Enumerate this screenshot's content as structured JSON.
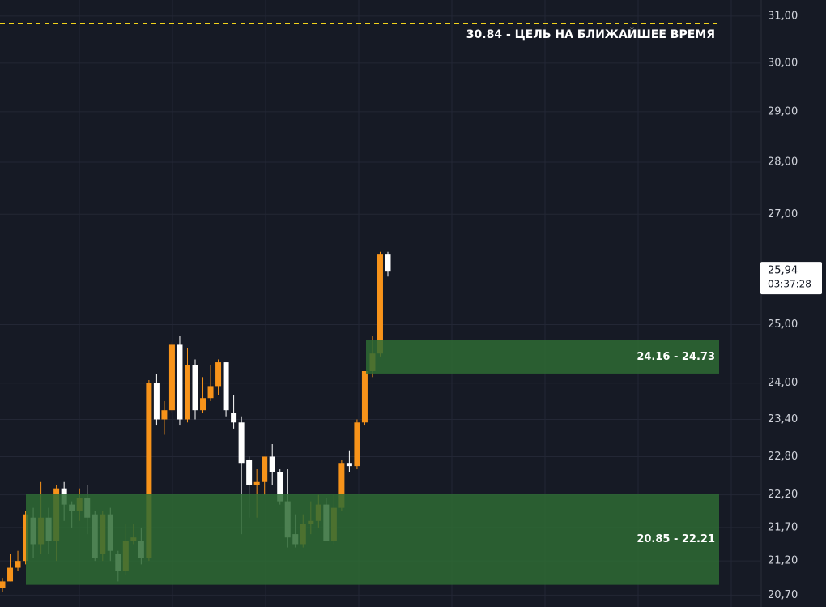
{
  "chart_data": {
    "type": "candlestick",
    "log_scale": true,
    "ylim": [
      20.53,
      31.35
    ],
    "yticks": [
      {
        "value": 31,
        "label": "31,00"
      },
      {
        "value": 30,
        "label": "30,00"
      },
      {
        "value": 29,
        "label": "29,00"
      },
      {
        "value": 28,
        "label": "28,00"
      },
      {
        "value": 27,
        "label": "27,00"
      },
      {
        "value": 25,
        "label": "25,00"
      },
      {
        "value": 24,
        "label": "24,00"
      },
      {
        "value": 23.4,
        "label": "23,40"
      },
      {
        "value": 22.8,
        "label": "22,80"
      },
      {
        "value": 22.2,
        "label": "22,20"
      },
      {
        "value": 21.7,
        "label": "21,70"
      },
      {
        "value": 21.2,
        "label": "21,20"
      },
      {
        "value": 20.7,
        "label": "20,70"
      }
    ],
    "grid": true,
    "up_color": "#f7931a",
    "down_color": "#ffffff",
    "open": [
      20.8,
      20.9,
      21.1,
      21.2,
      21.85,
      21.45,
      21.85,
      21.5,
      22.3,
      22.05,
      21.95,
      22.15,
      21.9,
      21.3,
      21.9,
      21.3,
      21.05,
      21.5,
      21.5,
      21.25,
      24.0,
      23.4,
      23.55,
      24.65,
      23.4,
      24.3,
      23.55,
      23.75,
      23.95,
      24.35,
      23.5,
      23.35,
      22.75,
      22.35,
      22.4,
      22.8,
      22.55,
      22.1,
      21.6,
      21.45,
      21.75,
      21.8,
      22.05,
      21.5,
      22.0,
      22.7,
      22.65,
      23.35,
      24.2,
      24.5,
      26.25
    ],
    "high": [
      20.95,
      21.3,
      21.35,
      21.95,
      22.0,
      22.4,
      22.0,
      22.35,
      22.4,
      22.1,
      22.3,
      22.35,
      21.95,
      21.95,
      22.0,
      21.35,
      21.75,
      21.75,
      21.7,
      24.05,
      24.15,
      23.7,
      24.7,
      24.8,
      24.6,
      24.4,
      24.1,
      24.3,
      24.4,
      24.35,
      23.8,
      23.45,
      22.8,
      22.6,
      22.8,
      23.0,
      22.6,
      22.6,
      21.9,
      21.9,
      22.1,
      22.2,
      22.15,
      22.2,
      22.75,
      22.9,
      23.4,
      24.2,
      24.8,
      26.3,
      26.3
    ],
    "low": [
      20.75,
      20.9,
      21.05,
      21.15,
      21.25,
      21.3,
      21.3,
      21.2,
      21.8,
      21.7,
      21.8,
      21.6,
      21.2,
      21.2,
      21.2,
      20.9,
      21.0,
      21.45,
      21.15,
      21.2,
      23.3,
      23.15,
      23.5,
      23.3,
      23.35,
      23.4,
      23.5,
      23.7,
      23.8,
      23.45,
      23.25,
      21.6,
      21.85,
      21.85,
      22.2,
      22.35,
      22.05,
      21.4,
      21.4,
      21.4,
      21.6,
      21.7,
      21.5,
      21.45,
      21.95,
      22.55,
      22.6,
      23.3,
      24.1,
      24.45,
      25.85
    ],
    "close": [
      20.9,
      21.1,
      21.2,
      21.9,
      21.45,
      21.85,
      21.5,
      22.3,
      22.05,
      21.95,
      22.15,
      21.85,
      21.25,
      21.9,
      21.35,
      21.05,
      21.5,
      21.55,
      21.25,
      24.0,
      23.4,
      23.55,
      24.65,
      23.4,
      24.3,
      23.55,
      23.75,
      23.95,
      24.35,
      23.55,
      23.35,
      22.7,
      22.35,
      22.4,
      22.8,
      22.55,
      22.1,
      21.55,
      21.45,
      21.75,
      21.8,
      22.05,
      21.5,
      22.0,
      22.7,
      22.65,
      23.35,
      24.2,
      24.5,
      26.25,
      25.94
    ],
    "zones": [
      {
        "low": 24.16,
        "high": 24.73,
        "label": "24.16 - 24.73",
        "color": "#2e6b34"
      },
      {
        "low": 20.85,
        "high": 22.21,
        "label": "20.85 - 22.21",
        "color": "#2e6b34"
      }
    ],
    "target": {
      "value": 30.84,
      "label": "30.84 - ЦЕЛЬ НА БЛИЖАЙШЕЕ ВРЕМЯ",
      "color": "#f2d31b"
    },
    "last_price": {
      "value": 25.94,
      "label": "25,94"
    },
    "countdown": "03:37:28"
  }
}
